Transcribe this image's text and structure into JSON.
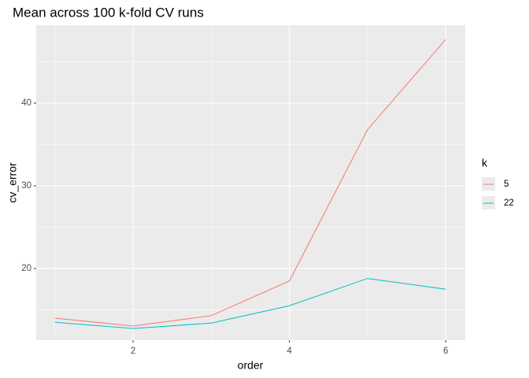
{
  "chart_data": {
    "type": "line",
    "title": "Mean across 100 k-fold CV runs",
    "x_label": "order",
    "y_label": "cv_error",
    "x": [
      1,
      2,
      3,
      4,
      5,
      6
    ],
    "series": [
      {
        "name": "5",
        "color": "#F8766D",
        "values": [
          14.0,
          13.05,
          14.3,
          18.5,
          36.8,
          47.7
        ]
      },
      {
        "name": "22",
        "color": "#00BFC4",
        "values": [
          13.5,
          12.75,
          13.4,
          15.5,
          18.8,
          17.5
        ]
      }
    ],
    "legend_title": "k",
    "legend": "right",
    "xlim": [
      0.76,
      6.25
    ],
    "xticks": [
      2,
      4,
      6
    ],
    "xminorticks": [
      1,
      3,
      5
    ],
    "ylim": [
      11.33,
      49.43
    ],
    "yticks": [
      20,
      30,
      40
    ],
    "yminorticks": [
      15,
      25,
      35,
      45
    ],
    "grid": true
  }
}
